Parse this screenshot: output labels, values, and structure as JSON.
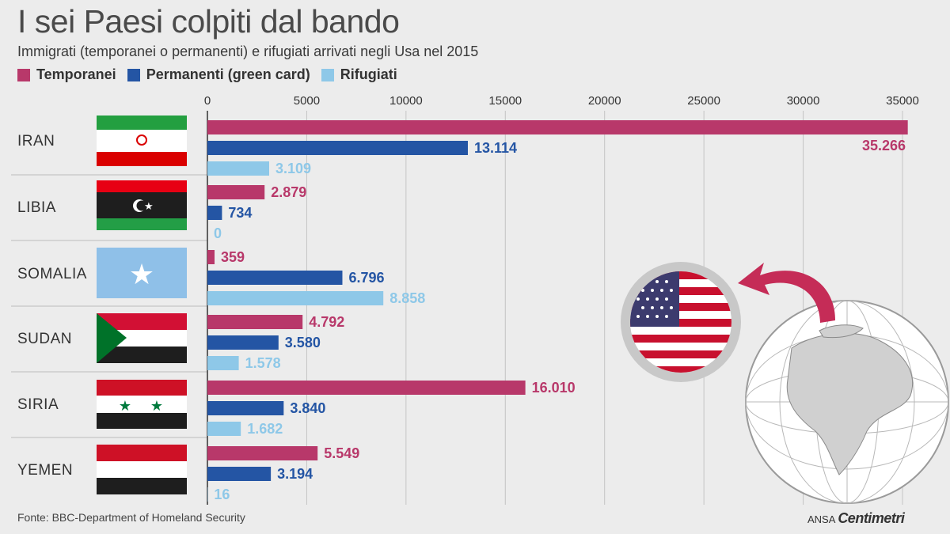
{
  "title": "I sei Paesi colpiti dal bando",
  "subtitle": "Immigrati (temporanei o permanenti) e rifugiati arrivati negli Usa nel 2015",
  "source": "Fonte: BBC-Department of Homeland Security",
  "brand": {
    "prefix": "ANSA",
    "name": "Centimetri"
  },
  "colors": {
    "temporanei": "#b8386a",
    "permanenti": "#2455a4",
    "rifugiati": "#8ec8e8"
  },
  "chart_data": {
    "type": "bar",
    "orientation": "horizontal",
    "title": "I sei Paesi colpiti dal bando",
    "subtitle": "Immigrati (temporanei o permanenti) e rifugiati arrivati negli Usa nel 2015",
    "categories": [
      "IRAN",
      "LIBIA",
      "SOMALIA",
      "SUDAN",
      "SIRIA",
      "YEMEN"
    ],
    "xlim": [
      0,
      35000
    ],
    "xticks": [
      "0",
      "5000",
      "10000",
      "15000",
      "20000",
      "25000",
      "30000",
      "35000"
    ],
    "grid": true,
    "legend_position": "top-left",
    "series": [
      {
        "name": "Temporanei",
        "color": "#b8386a",
        "values": [
          35266,
          2879,
          359,
          4792,
          16010,
          5549
        ],
        "labels": [
          "35.266",
          "2.879",
          "359",
          "4.792",
          "16.010",
          "5.549"
        ]
      },
      {
        "name": "Permanenti (green card)",
        "color": "#2455a4",
        "values": [
          13114,
          734,
          6796,
          3580,
          3840,
          3194
        ],
        "labels": [
          "13.114",
          "734",
          "6.796",
          "3.580",
          "3.840",
          "3.194"
        ]
      },
      {
        "name": "Rifugiati",
        "color": "#8ec8e8",
        "values": [
          3109,
          0,
          8858,
          1578,
          1682,
          16
        ],
        "labels": [
          "3.109",
          "0",
          "8.858",
          "1.578",
          "1.682",
          "16"
        ]
      }
    ]
  }
}
